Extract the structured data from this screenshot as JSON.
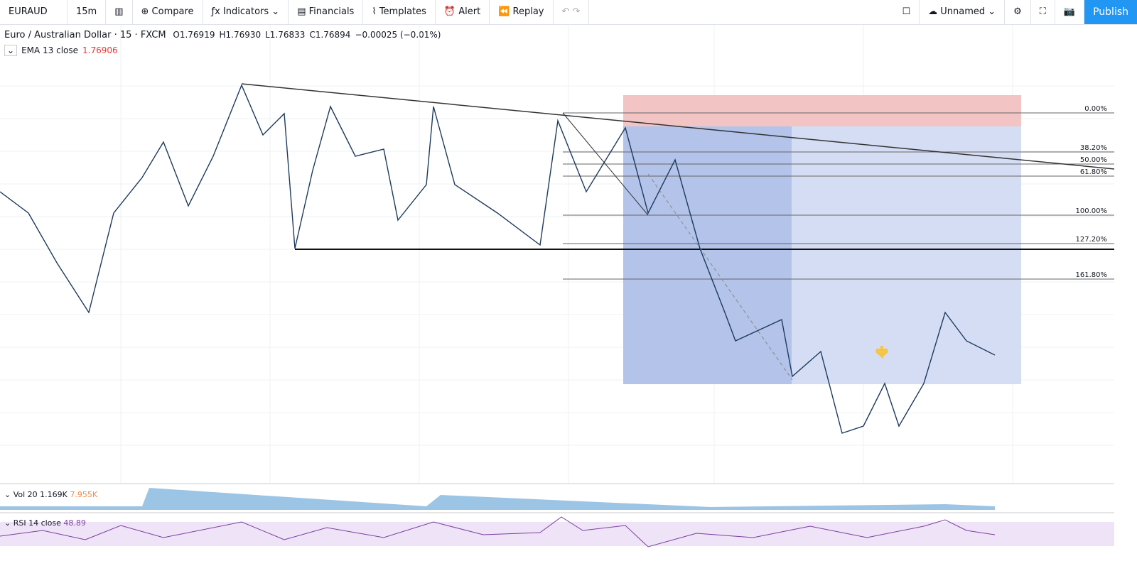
{
  "toolbar": {
    "symbol": "EURAUD",
    "interval": "15m",
    "compare": "Compare",
    "indicators": "Indicators",
    "financials": "Financials",
    "templates": "Templates",
    "alert": "Alert",
    "replay": "Replay",
    "layout": "Unnamed",
    "publish": "Publish"
  },
  "legend": {
    "title": "Euro / Australian Dollar · 15 · FXCM",
    "open": "O1.76919",
    "high": "H1.76930",
    "low": "L1.76833",
    "close": "C1.76894",
    "change": "−0.00025 (−0.01%)"
  },
  "ema": {
    "label": "EMA 13 close",
    "value": "1.76906"
  },
  "fib_levels": [
    "0.00%",
    "38.20%",
    "50.00%",
    "61.80%",
    "100.00%",
    "127.20%",
    "161.80%"
  ],
  "volume": {
    "label": "Vol 20",
    "value": "1.169K",
    "ma": "7.955K"
  },
  "rsi": {
    "label": "RSI 14 close",
    "value": "48.89"
  }
}
